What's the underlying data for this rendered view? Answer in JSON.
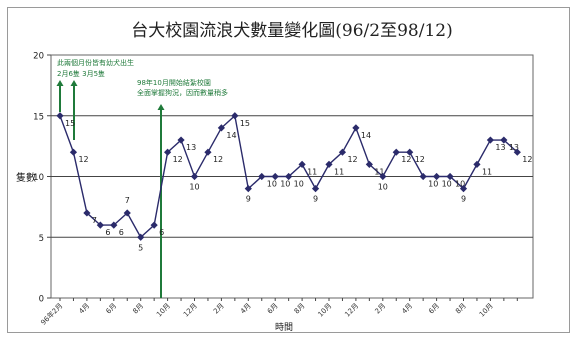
{
  "chart_data": {
    "type": "line",
    "title": "台大校園流浪犬數量變化圖(96/2至98/12)",
    "xlabel": "時間",
    "ylabel": "隻數",
    "ylim": [
      0,
      20
    ],
    "yticks": [
      0,
      5,
      10,
      15,
      20
    ],
    "grid": "horizontal",
    "x_tick_labels": [
      {
        "i": 0,
        "label": "96年2月"
      },
      {
        "i": 2,
        "label": "4月"
      },
      {
        "i": 4,
        "label": "6月"
      },
      {
        "i": 6,
        "label": "8月"
      },
      {
        "i": 8,
        "label": "10月"
      },
      {
        "i": 10,
        "label": "12月"
      },
      {
        "i": 12,
        "label": "2月"
      },
      {
        "i": 14,
        "label": "4月"
      },
      {
        "i": 16,
        "label": "6月"
      },
      {
        "i": 18,
        "label": "8月"
      },
      {
        "i": 20,
        "label": "10月"
      },
      {
        "i": 22,
        "label": "12月"
      },
      {
        "i": 24,
        "label": "2月"
      },
      {
        "i": 26,
        "label": "4月"
      },
      {
        "i": 28,
        "label": "6月"
      },
      {
        "i": 30,
        "label": "8月"
      },
      {
        "i": 32,
        "label": "10月"
      }
    ],
    "series": [
      {
        "values": [
          15,
          12,
          7,
          6,
          6,
          7,
          5,
          6,
          12,
          13,
          10,
          12,
          14,
          15,
          9,
          10,
          10,
          10,
          11,
          9,
          11,
          12,
          14,
          11,
          10,
          12,
          12,
          10,
          10,
          10,
          9,
          11,
          13,
          13,
          12
        ],
        "color": "#2b2b6b"
      }
    ],
    "data_labels": [
      "15",
      "12",
      "7",
      "6",
      "6",
      "7",
      "5",
      "6",
      "12",
      "13",
      "10",
      "12",
      "14",
      "15",
      "9",
      "10",
      "10",
      "10",
      "11",
      "9",
      "11",
      "12",
      "14",
      "11",
      "10",
      "12",
      "12",
      "10",
      "10",
      "10",
      "9",
      "11",
      "13",
      "13",
      "12"
    ],
    "annotations": [
      {
        "text_lines": [
          "此兩個月份皆有幼犬出生",
          "2月6隻  3月5隻"
        ],
        "color": "#1f7a3a"
      },
      {
        "text_lines": [
          "98年10月開始結紮校園",
          "全面掌握狗況，因而數量稍多"
        ],
        "color": "#1f7a3a"
      }
    ]
  }
}
